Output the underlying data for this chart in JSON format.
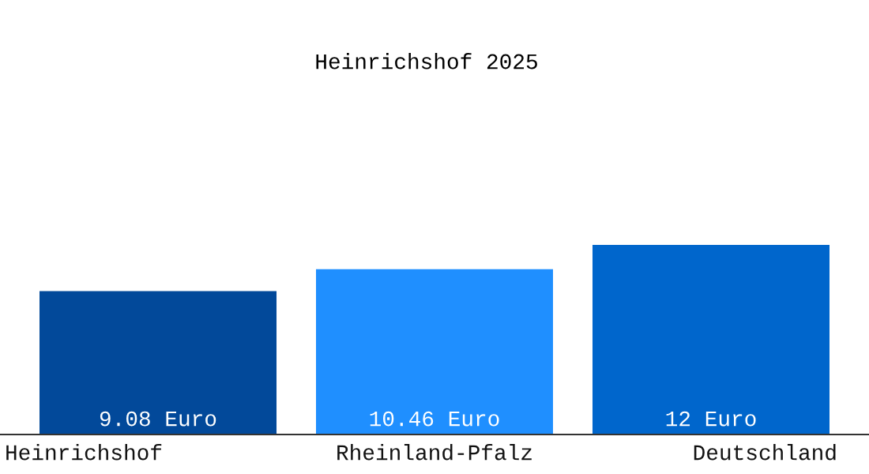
{
  "chart_data": {
    "type": "bar",
    "title": "Heinrichshof 2025",
    "categories": [
      "Heinrichshof",
      "Rheinland-Pfalz",
      "Deutschland"
    ],
    "values": [
      9.08,
      10.46,
      12
    ],
    "colors": [
      "#02499a",
      "#1f8fff",
      "#0066cc"
    ],
    "value_labels": [
      "9.08 Euro",
      "10.46 Euro",
      "12 Euro"
    ]
  }
}
